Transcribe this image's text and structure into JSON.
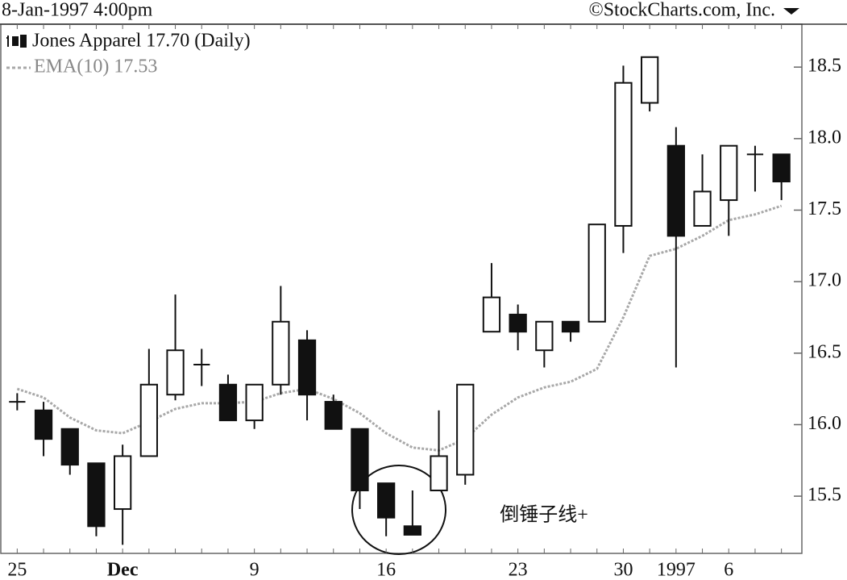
{
  "chart_data": {
    "type": "candlestick",
    "header_left": "8-Jan-1997 4:00pm",
    "header_right": "©StockCharts.com, Inc.",
    "annotation": "倒锤子线+",
    "categories": [
      "25",
      null,
      null,
      null,
      "Dec",
      null,
      null,
      null,
      null,
      "9",
      null,
      null,
      null,
      null,
      "16",
      null,
      null,
      null,
      null,
      "23",
      null,
      null,
      null,
      "30",
      null,
      "1997",
      null,
      "6",
      null,
      null
    ],
    "ylim": [
      15.1,
      18.8
    ],
    "yticks": [
      15.5,
      {
        "value": 16,
        "label": "16.0"
      },
      16.5,
      {
        "value": 17,
        "label": "17.0"
      },
      17.5,
      {
        "value": 18,
        "label": "18.0"
      },
      18.5
    ],
    "series": [
      {
        "name": "Jones Apparel 17.70 (Daily)",
        "type": "candlestick",
        "up_color": "#ffffff",
        "down_color": "#111111",
        "open": [
          16.16,
          16.1,
          15.97,
          15.73,
          15.41,
          15.78,
          16.21,
          16.42,
          16.28,
          16.03,
          16.28,
          16.59,
          16.16,
          15.97,
          15.59,
          15.29,
          15.54,
          15.65,
          16.65,
          16.77,
          16.52,
          16.72,
          16.72,
          17.39,
          18.25,
          17.95,
          17.39,
          17.57,
          17.89,
          17.89
        ],
        "high": [
          16.22,
          16.16,
          15.97,
          15.73,
          15.86,
          16.53,
          16.91,
          16.53,
          16.35,
          16.28,
          16.97,
          16.66,
          16.21,
          15.97,
          15.59,
          15.54,
          16.1,
          16.28,
          17.13,
          16.84,
          16.72,
          16.72,
          17.4,
          18.51,
          18.57,
          18.08,
          17.89,
          17.95,
          17.95,
          17.89
        ],
        "low": [
          16.1,
          15.78,
          15.65,
          15.22,
          15.16,
          15.78,
          16.17,
          16.27,
          16.03,
          15.97,
          16.21,
          16.03,
          15.97,
          15.41,
          15.22,
          15.23,
          15.54,
          15.58,
          16.65,
          16.52,
          16.4,
          16.58,
          16.72,
          17.2,
          18.19,
          16.4,
          17.39,
          17.32,
          17.63,
          17.57
        ],
        "close": [
          16.16,
          15.9,
          15.72,
          15.29,
          15.78,
          16.28,
          16.52,
          16.42,
          16.03,
          16.28,
          16.72,
          16.21,
          15.97,
          15.54,
          15.35,
          15.23,
          15.78,
          16.28,
          16.89,
          16.65,
          16.72,
          16.65,
          17.4,
          18.39,
          18.57,
          17.32,
          17.63,
          17.95,
          17.89,
          17.7
        ]
      },
      {
        "name": "EMA(10) 17.53",
        "type": "line",
        "color": "#a8a8a8",
        "values": [
          16.25,
          16.19,
          16.05,
          15.96,
          15.94,
          16.02,
          16.11,
          16.15,
          16.15,
          16.16,
          16.22,
          16.25,
          16.18,
          16.08,
          15.94,
          15.84,
          15.82,
          15.9,
          16.07,
          16.19,
          16.26,
          16.3,
          16.39,
          16.75,
          17.18,
          17.23,
          17.32,
          17.43,
          17.47,
          17.53
        ]
      }
    ]
  }
}
